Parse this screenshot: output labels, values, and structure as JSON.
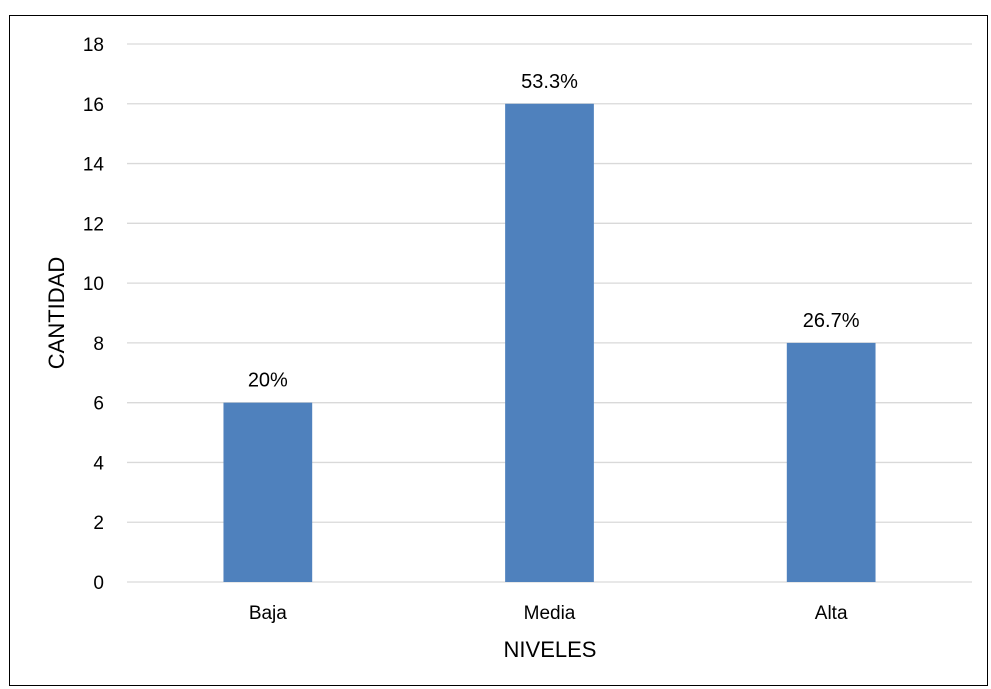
{
  "chart_data": {
    "type": "bar",
    "title": "",
    "xlabel": "NIVELES",
    "ylabel": "CANTIDAD",
    "categories": [
      "Baja",
      "Media",
      "Alta"
    ],
    "values": [
      6,
      16,
      8
    ],
    "data_labels": [
      "20%",
      "53.3%",
      "26.7%"
    ],
    "ylim": [
      0,
      18
    ],
    "yticks": [
      0,
      2,
      4,
      6,
      8,
      10,
      12,
      14,
      16,
      18
    ],
    "grid": true,
    "legend": "none",
    "bar_color": "#4f81bd",
    "grid_color": "#d9d9d9"
  }
}
